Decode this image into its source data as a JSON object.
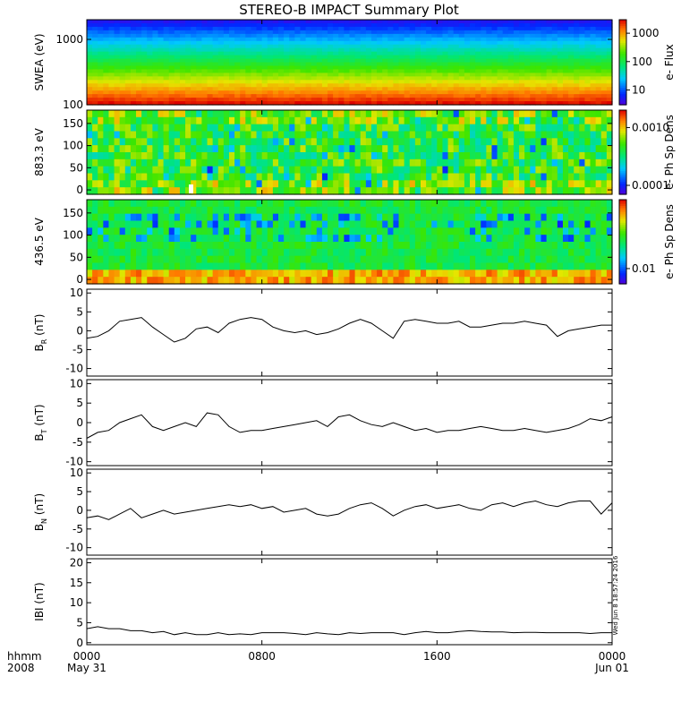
{
  "title": "STEREO-B IMPACT Summary Plot",
  "x_axis": {
    "row1_labels": [
      "hhmm",
      "0000",
      "0800",
      "1600",
      "0000"
    ],
    "row2_labels": [
      "2008",
      "May 31",
      "Jun 01"
    ],
    "range_hours": [
      0,
      24
    ],
    "major_ticks_hours": [
      0,
      8,
      16,
      24
    ]
  },
  "timestamp": "Wed Jun 8 18:57:24 2016",
  "colors": {
    "line": "#000000",
    "missing": "#ffffff"
  },
  "chart_data": [
    {
      "type": "heatmap",
      "name": "swea",
      "ylabel": "SWEA (eV)",
      "yscale": "log",
      "ylim": [
        100,
        2000
      ],
      "yticks": [
        100,
        1000
      ],
      "ytick_labels": [
        "100",
        "1000"
      ],
      "colorbar": {
        "label": "e- Flux",
        "scale": "log",
        "range": [
          3,
          3000
        ],
        "ticks": [
          10,
          100,
          1000
        ],
        "tick_labels": [
          "10",
          "100",
          "1000"
        ]
      },
      "description_profile": "flux decreases with energy: ~3000 at 100 eV to ~3 at 2000 eV, nearly constant in time"
    },
    {
      "type": "heatmap",
      "name": "pad_883",
      "ylabel": "883.3 eV",
      "ylim": [
        -10,
        180
      ],
      "yticks": [
        0,
        50,
        100,
        150
      ],
      "ytick_labels": [
        "0",
        "50",
        "100",
        "150"
      ],
      "colorbar": {
        "label": "e- Ph Sp Dens",
        "scale": "log",
        "range": [
          7e-05,
          0.002
        ],
        "ticks": [
          0.0001,
          0.001
        ],
        "tick_labels": [
          "0.0001",
          "0.0010"
        ]
      }
    },
    {
      "type": "heatmap",
      "name": "pad_436",
      "ylabel": "436.5 eV",
      "ylim": [
        -10,
        180
      ],
      "yticks": [
        0,
        50,
        100,
        150
      ],
      "ytick_labels": [
        "0",
        "50",
        "100",
        "150"
      ],
      "colorbar": {
        "label": "e- Ph Sp Dens",
        "scale": "log",
        "range": [
          0.007,
          0.05
        ],
        "ticks": [
          0.01
        ],
        "tick_labels": [
          "0.01"
        ]
      }
    },
    {
      "type": "line",
      "name": "br",
      "ylabel_main": "B",
      "ylabel_sub": "R",
      "ylabel_tail": "(nT)",
      "ylim": [
        -12,
        11
      ],
      "yticks": [
        -10,
        -5,
        0,
        5,
        10
      ],
      "ytick_labels": [
        "-10",
        "-5",
        "0",
        "5",
        "10"
      ],
      "x": [
        0,
        0.5,
        1,
        1.5,
        2,
        2.5,
        3,
        3.5,
        4,
        4.5,
        5,
        5.5,
        6,
        6.5,
        7,
        7.5,
        8,
        8.5,
        9,
        9.5,
        10,
        10.5,
        11,
        11.5,
        12,
        12.5,
        13,
        13.5,
        14,
        14.5,
        15,
        15.5,
        16,
        16.5,
        17,
        17.5,
        18,
        18.5,
        19,
        19.5,
        20,
        20.5,
        21,
        21.5,
        22,
        22.5,
        23,
        23.5,
        24
      ],
      "y": [
        -2,
        -1.5,
        0,
        2.5,
        3,
        3.5,
        1,
        -1,
        -3,
        -2,
        0.5,
        1,
        -0.5,
        2,
        3,
        3.5,
        3,
        1,
        0,
        -0.5,
        0,
        -1,
        -0.5,
        0.5,
        2,
        3,
        2,
        0,
        -2,
        2.5,
        3,
        2.5,
        2,
        2,
        2.5,
        1,
        1,
        1.5,
        2,
        2,
        2.5,
        2,
        1.5,
        -1.5,
        0,
        0.5,
        1,
        1.5,
        1.5
      ]
    },
    {
      "type": "line",
      "name": "bt",
      "ylabel_main": "B",
      "ylabel_sub": "T",
      "ylabel_tail": "(nT)",
      "ylim": [
        -11,
        11
      ],
      "yticks": [
        -10,
        -5,
        0,
        5,
        10
      ],
      "ytick_labels": [
        "-10",
        "-5",
        "0",
        "5",
        "10"
      ],
      "x": [
        0,
        0.5,
        1,
        1.5,
        2,
        2.5,
        3,
        3.5,
        4,
        4.5,
        5,
        5.5,
        6,
        6.5,
        7,
        7.5,
        8,
        8.5,
        9,
        9.5,
        10,
        10.5,
        11,
        11.5,
        12,
        12.5,
        13,
        13.5,
        14,
        14.5,
        15,
        15.5,
        16,
        16.5,
        17,
        17.5,
        18,
        18.5,
        19,
        19.5,
        20,
        20.5,
        21,
        21.5,
        22,
        22.5,
        23,
        23.5,
        24
      ],
      "y": [
        -4,
        -2.5,
        -2,
        0,
        1,
        2,
        -1,
        -2,
        -1,
        0,
        -1,
        2.5,
        2,
        -1,
        -2.5,
        -2,
        -2,
        -1.5,
        -1,
        -0.5,
        0,
        0.5,
        -1,
        1.5,
        2,
        0.5,
        -0.5,
        -1,
        0,
        -1,
        -2,
        -1.5,
        -2.5,
        -2,
        -2,
        -1.5,
        -1,
        -1.5,
        -2,
        -2,
        -1.5,
        -2,
        -2.5,
        -2,
        -1.5,
        -0.5,
        1,
        0.5,
        1.5
      ]
    },
    {
      "type": "line",
      "name": "bn",
      "ylabel_main": "B",
      "ylabel_sub": "N",
      "ylabel_tail": "(nT)",
      "ylim": [
        -12,
        11
      ],
      "yticks": [
        -10,
        -5,
        0,
        5,
        10
      ],
      "ytick_labels": [
        "-10",
        "-5",
        "0",
        "5",
        "10"
      ],
      "x": [
        0,
        0.5,
        1,
        1.5,
        2,
        2.5,
        3,
        3.5,
        4,
        4.5,
        5,
        5.5,
        6,
        6.5,
        7,
        7.5,
        8,
        8.5,
        9,
        9.5,
        10,
        10.5,
        11,
        11.5,
        12,
        12.5,
        13,
        13.5,
        14,
        14.5,
        15,
        15.5,
        16,
        16.5,
        17,
        17.5,
        18,
        18.5,
        19,
        19.5,
        20,
        20.5,
        21,
        21.5,
        22,
        22.5,
        23,
        23.5,
        24
      ],
      "y": [
        -2,
        -1.5,
        -2.5,
        -1,
        0.5,
        -2,
        -1,
        0,
        -1,
        -0.5,
        0,
        0.5,
        1,
        1.5,
        1,
        1.5,
        0.5,
        1,
        -0.5,
        0,
        0.5,
        -1,
        -1.5,
        -1,
        0.5,
        1.5,
        2,
        0.5,
        -1.5,
        0,
        1,
        1.5,
        0.5,
        1,
        1.5,
        0.5,
        0,
        1.5,
        2,
        1,
        2,
        2.5,
        1.5,
        1,
        2,
        2.5,
        2.5,
        -1,
        2
      ]
    },
    {
      "type": "line",
      "name": "btot",
      "ylabel_main": "IBI",
      "ylabel_sub": "",
      "ylabel_tail": "(nT)",
      "ylim": [
        -0.5,
        21
      ],
      "yticks": [
        0,
        5,
        10,
        15,
        20
      ],
      "ytick_labels": [
        "0",
        "5",
        "10",
        "15",
        "20"
      ],
      "x": [
        0,
        0.5,
        1,
        1.5,
        2,
        2.5,
        3,
        3.5,
        4,
        4.5,
        5,
        5.5,
        6,
        6.5,
        7,
        7.5,
        8,
        8.5,
        9,
        9.5,
        10,
        10.5,
        11,
        11.5,
        12,
        12.5,
        13,
        13.5,
        14,
        14.5,
        15,
        15.5,
        16,
        16.5,
        17,
        17.5,
        18,
        18.5,
        19,
        19.5,
        20,
        20.5,
        21,
        21.5,
        22,
        22.5,
        23,
        23.5,
        24
      ],
      "y": [
        3.5,
        4,
        3.5,
        3.5,
        3,
        3,
        2.5,
        2.8,
        2,
        2.5,
        2,
        2,
        2.5,
        2,
        2.2,
        2,
        2.5,
        2.5,
        2.5,
        2.3,
        2,
        2.5,
        2.2,
        2,
        2.5,
        2.3,
        2.5,
        2.5,
        2.5,
        2,
        2.5,
        2.8,
        2.5,
        2.5,
        2.8,
        3,
        2.8,
        2.7,
        2.7,
        2.5,
        2.6,
        2.6,
        2.5,
        2.5,
        2.5,
        2.5,
        2.3,
        2.5,
        2.5
      ]
    }
  ]
}
